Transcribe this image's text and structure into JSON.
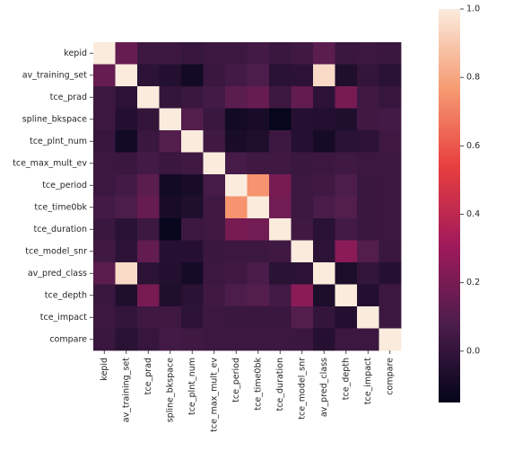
{
  "chart_data": {
    "type": "heatmap",
    "title": "",
    "xlabel": "",
    "ylabel": "",
    "labels": [
      "kepid",
      "av_training_set",
      "tce_prad",
      "spline_bkspace",
      "tce_plnt_num",
      "tce_max_mult_ev",
      "tce_period",
      "tce_time0bk",
      "tce_duration",
      "tce_model_snr",
      "av_pred_class",
      "tce_depth",
      "tce_impact",
      "compare"
    ],
    "values": [
      [
        1.0,
        0.15,
        0.03,
        0.03,
        0.01,
        0.03,
        0.03,
        0.05,
        0.02,
        0.04,
        0.12,
        0.02,
        0.03,
        0.02
      ],
      [
        0.15,
        1.0,
        -0.02,
        -0.05,
        -0.1,
        0.02,
        0.05,
        0.08,
        -0.03,
        -0.02,
        0.95,
        -0.06,
        0.0,
        -0.03
      ],
      [
        0.03,
        -0.02,
        1.0,
        0.0,
        0.02,
        0.05,
        0.12,
        0.15,
        0.03,
        0.14,
        -0.02,
        0.2,
        0.04,
        0.01
      ],
      [
        0.03,
        -0.05,
        0.0,
        1.0,
        0.1,
        0.02,
        -0.1,
        -0.08,
        -0.14,
        -0.04,
        -0.05,
        -0.06,
        0.04,
        0.05
      ],
      [
        0.01,
        -0.1,
        0.02,
        0.1,
        1.0,
        0.04,
        -0.08,
        -0.06,
        0.03,
        -0.04,
        -0.09,
        -0.03,
        -0.02,
        0.04
      ],
      [
        0.03,
        0.02,
        0.05,
        0.02,
        0.04,
        1.0,
        0.06,
        0.04,
        0.04,
        0.02,
        0.03,
        0.04,
        0.03,
        0.03
      ],
      [
        0.03,
        0.05,
        0.12,
        -0.1,
        -0.08,
        0.06,
        1.0,
        0.75,
        0.2,
        0.03,
        0.04,
        0.08,
        0.02,
        0.03
      ],
      [
        0.05,
        0.08,
        0.15,
        -0.08,
        -0.06,
        0.04,
        0.75,
        1.0,
        0.18,
        0.03,
        0.07,
        0.1,
        0.02,
        0.03
      ],
      [
        0.02,
        -0.03,
        0.03,
        -0.14,
        0.03,
        0.04,
        0.2,
        0.18,
        1.0,
        0.04,
        -0.03,
        0.05,
        0.02,
        0.03
      ],
      [
        0.04,
        -0.02,
        0.14,
        -0.04,
        -0.04,
        0.02,
        0.03,
        0.03,
        0.04,
        1.0,
        -0.02,
        0.25,
        0.1,
        0.02
      ],
      [
        0.12,
        0.95,
        -0.02,
        -0.05,
        -0.09,
        0.03,
        0.04,
        0.07,
        -0.03,
        -0.02,
        1.0,
        -0.07,
        0.0,
        -0.04
      ],
      [
        0.02,
        -0.06,
        0.2,
        -0.06,
        -0.03,
        0.04,
        0.08,
        0.1,
        0.05,
        0.25,
        -0.07,
        1.0,
        -0.05,
        0.03
      ],
      [
        0.03,
        0.0,
        0.04,
        0.04,
        -0.02,
        0.03,
        0.02,
        0.02,
        0.02,
        0.1,
        0.0,
        -0.05,
        1.0,
        0.03
      ],
      [
        0.02,
        -0.03,
        0.01,
        0.05,
        0.04,
        0.03,
        0.03,
        0.03,
        0.03,
        0.02,
        -0.04,
        0.03,
        0.03,
        1.0
      ]
    ],
    "colorbar": {
      "vmin": -0.15,
      "vmax": 1.0,
      "ticks": [
        1.0,
        0.8,
        0.6,
        0.4,
        0.2,
        0.0
      ],
      "tick_labels": [
        "1.0",
        "0.8",
        "0.6",
        "0.4",
        "0.2",
        "0.0"
      ]
    },
    "colormap": [
      "#03051a",
      "#4c1d4b",
      "#a11a5b",
      "#e83f3f",
      "#f69c73",
      "#faebdd"
    ],
    "grid": false
  }
}
